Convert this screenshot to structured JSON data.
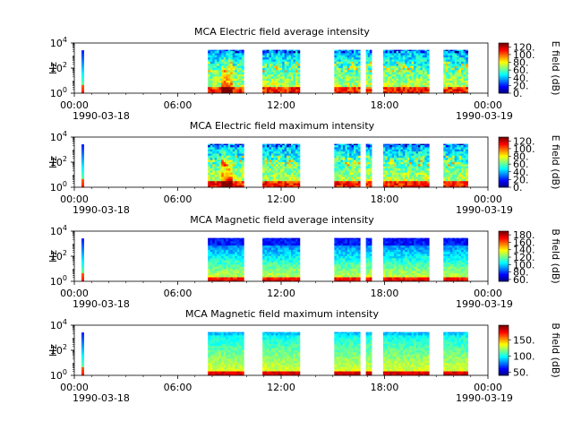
{
  "chart_data": [
    {
      "type": "heatmap",
      "title": "MCA  Electric field average intensity",
      "ylabel": "Hz",
      "yscale": "log",
      "ylim": [
        1,
        10000
      ],
      "yticks": [
        {
          "base": "10",
          "exp": "0"
        },
        {
          "base": "10",
          "exp": "2"
        },
        {
          "base": "10",
          "exp": "4"
        }
      ],
      "xlim": [
        "1990-03-18 00:00",
        "1990-03-19 00:00"
      ],
      "xticks": [
        "00:00",
        "06:00",
        "12:00",
        "18:00",
        "00:00"
      ],
      "xdates": {
        "start": "1990-03-18",
        "end": "1990-03-19"
      },
      "colorbar": {
        "label": "E field (dB)",
        "min": 0,
        "max": 130,
        "ticks": [
          "0.",
          "20.",
          "40.",
          "60.",
          "80.",
          "100.",
          "120."
        ],
        "colormap": "jet"
      },
      "data_intervals": [
        [
          "00:25",
          "00:33"
        ],
        [
          "07:45",
          "09:50"
        ],
        [
          "10:55",
          "13:05"
        ],
        [
          "15:05",
          "16:35"
        ],
        [
          "16:55",
          "17:15"
        ],
        [
          "17:55",
          "20:35"
        ],
        [
          "21:25",
          "22:50"
        ]
      ],
      "style": "electric"
    },
    {
      "type": "heatmap",
      "title": "MCA  Electric field maximum intensity",
      "ylabel": "Hz",
      "yscale": "log",
      "ylim": [
        1,
        10000
      ],
      "yticks": [
        {
          "base": "10",
          "exp": "0"
        },
        {
          "base": "10",
          "exp": "2"
        },
        {
          "base": "10",
          "exp": "4"
        }
      ],
      "xlim": [
        "1990-03-18 00:00",
        "1990-03-19 00:00"
      ],
      "xticks": [
        "00:00",
        "06:00",
        "12:00",
        "18:00",
        "00:00"
      ],
      "xdates": {
        "start": "1990-03-18",
        "end": "1990-03-19"
      },
      "colorbar": {
        "label": "E field (dB)",
        "min": 0,
        "max": 130,
        "ticks": [
          "0.",
          "20.",
          "40.",
          "60.",
          "80.",
          "100.",
          "120."
        ],
        "colormap": "jet"
      },
      "data_intervals": [
        [
          "00:25",
          "00:33"
        ],
        [
          "07:45",
          "09:50"
        ],
        [
          "10:55",
          "13:05"
        ],
        [
          "15:05",
          "16:35"
        ],
        [
          "16:55",
          "17:15"
        ],
        [
          "17:55",
          "20:35"
        ],
        [
          "21:25",
          "22:50"
        ]
      ],
      "style": "electric"
    },
    {
      "type": "heatmap",
      "title": "MCA  Magnetic field average intensity",
      "ylabel": "Hz",
      "yscale": "log",
      "ylim": [
        1,
        10000
      ],
      "yticks": [
        {
          "base": "10",
          "exp": "0"
        },
        {
          "base": "10",
          "exp": "2"
        },
        {
          "base": "10",
          "exp": "4"
        }
      ],
      "xlim": [
        "1990-03-18 00:00",
        "1990-03-19 00:00"
      ],
      "xticks": [
        "00:00",
        "06:00",
        "12:00",
        "18:00",
        "00:00"
      ],
      "xdates": {
        "start": "1990-03-18",
        "end": "1990-03-19"
      },
      "colorbar": {
        "label": "B field (dB)",
        "min": 55,
        "max": 190,
        "ticks": [
          "60.",
          "80.",
          "100.",
          "120.",
          "140.",
          "160.",
          "180."
        ],
        "colormap": "jet"
      },
      "data_intervals": [
        [
          "00:25",
          "00:33"
        ],
        [
          "07:45",
          "09:50"
        ],
        [
          "10:55",
          "13:05"
        ],
        [
          "15:05",
          "16:35"
        ],
        [
          "16:55",
          "17:15"
        ],
        [
          "17:55",
          "20:35"
        ],
        [
          "21:25",
          "22:50"
        ]
      ],
      "style": "magnetic_avg"
    },
    {
      "type": "heatmap",
      "title": "MCA  Magnetic field maximum intensity",
      "ylabel": "Hz",
      "yscale": "log",
      "ylim": [
        1,
        10000
      ],
      "yticks": [
        {
          "base": "10",
          "exp": "0"
        },
        {
          "base": "10",
          "exp": "2"
        },
        {
          "base": "10",
          "exp": "4"
        }
      ],
      "xlim": [
        "1990-03-18 00:00",
        "1990-03-19 00:00"
      ],
      "xticks": [
        "00:00",
        "06:00",
        "12:00",
        "18:00",
        "00:00"
      ],
      "xdates": {
        "start": "1990-03-18",
        "end": "1990-03-19"
      },
      "colorbar": {
        "label": "B field (dB)",
        "min": 40,
        "max": 195,
        "ticks": [
          "50.",
          "100.",
          "150."
        ],
        "colormap": "jet"
      },
      "data_intervals": [
        [
          "00:25",
          "00:33"
        ],
        [
          "07:45",
          "09:50"
        ],
        [
          "10:55",
          "13:05"
        ],
        [
          "15:05",
          "16:35"
        ],
        [
          "16:55",
          "17:15"
        ],
        [
          "17:55",
          "20:35"
        ],
        [
          "21:25",
          "22:50"
        ]
      ],
      "style": "magnetic_max"
    }
  ]
}
